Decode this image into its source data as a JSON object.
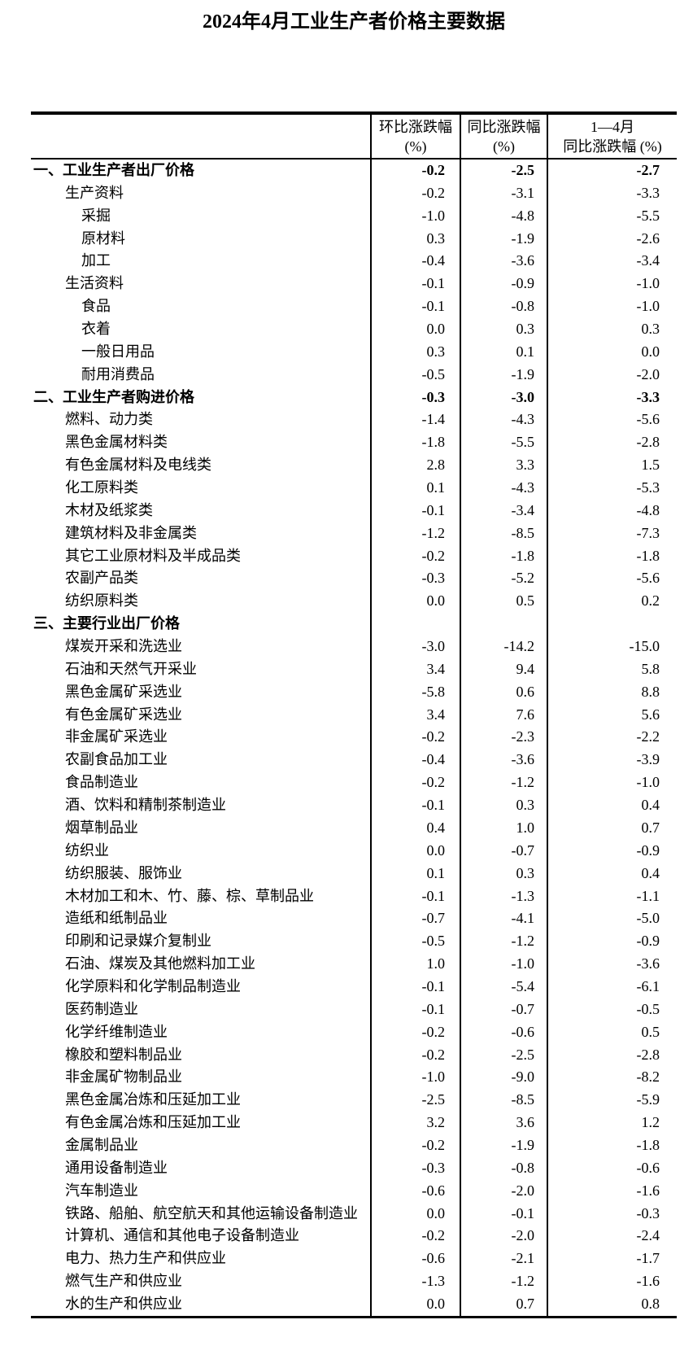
{
  "page": {
    "title": "2024年4月工业生产者价格主要数据"
  },
  "table": {
    "header": {
      "mom": {
        "line1": "环比涨跌幅",
        "line2": "(%)"
      },
      "yoy": {
        "line1": "同比涨跌幅",
        "line2": "(%)"
      },
      "ytd": {
        "line1": "1—4月",
        "line2": "同比涨跌幅 (%)"
      }
    },
    "rows": [
      {
        "label": "一、工业生产者出厂价格",
        "indent": 0,
        "bold": true,
        "mom": "-0.2",
        "yoy": "-2.5",
        "ytd": "-2.7"
      },
      {
        "label": "生产资料",
        "indent": 1,
        "bold": false,
        "mom": "-0.2",
        "yoy": "-3.1",
        "ytd": "-3.3"
      },
      {
        "label": "采掘",
        "indent": 2,
        "bold": false,
        "mom": "-1.0",
        "yoy": "-4.8",
        "ytd": "-5.5"
      },
      {
        "label": "原材料",
        "indent": 2,
        "bold": false,
        "mom": "0.3",
        "yoy": "-1.9",
        "ytd": "-2.6"
      },
      {
        "label": "加工",
        "indent": 2,
        "bold": false,
        "mom": "-0.4",
        "yoy": "-3.6",
        "ytd": "-3.4"
      },
      {
        "label": "生活资料",
        "indent": 1,
        "bold": false,
        "mom": "-0.1",
        "yoy": "-0.9",
        "ytd": "-1.0"
      },
      {
        "label": "食品",
        "indent": 2,
        "bold": false,
        "mom": "-0.1",
        "yoy": "-0.8",
        "ytd": "-1.0"
      },
      {
        "label": "衣着",
        "indent": 2,
        "bold": false,
        "mom": "0.0",
        "yoy": "0.3",
        "ytd": "0.3"
      },
      {
        "label": "一般日用品",
        "indent": 2,
        "bold": false,
        "mom": "0.3",
        "yoy": "0.1",
        "ytd": "0.0"
      },
      {
        "label": "耐用消费品",
        "indent": 2,
        "bold": false,
        "mom": "-0.5",
        "yoy": "-1.9",
        "ytd": "-2.0"
      },
      {
        "label": "二、工业生产者购进价格",
        "indent": 0,
        "bold": true,
        "mom": "-0.3",
        "yoy": "-3.0",
        "ytd": "-3.3"
      },
      {
        "label": "燃料、动力类",
        "indent": 1,
        "bold": false,
        "mom": "-1.4",
        "yoy": "-4.3",
        "ytd": "-5.6"
      },
      {
        "label": "黑色金属材料类",
        "indent": 1,
        "bold": false,
        "mom": "-1.8",
        "yoy": "-5.5",
        "ytd": "-2.8"
      },
      {
        "label": "有色金属材料及电线类",
        "indent": 1,
        "bold": false,
        "mom": "2.8",
        "yoy": "3.3",
        "ytd": "1.5"
      },
      {
        "label": "化工原料类",
        "indent": 1,
        "bold": false,
        "mom": "0.1",
        "yoy": "-4.3",
        "ytd": "-5.3"
      },
      {
        "label": "木材及纸浆类",
        "indent": 1,
        "bold": false,
        "mom": "-0.1",
        "yoy": "-3.4",
        "ytd": "-4.8"
      },
      {
        "label": "建筑材料及非金属类",
        "indent": 1,
        "bold": false,
        "mom": "-1.2",
        "yoy": "-8.5",
        "ytd": "-7.3"
      },
      {
        "label": "其它工业原材料及半成品类",
        "indent": 1,
        "bold": false,
        "mom": "-0.2",
        "yoy": "-1.8",
        "ytd": "-1.8"
      },
      {
        "label": "农副产品类",
        "indent": 1,
        "bold": false,
        "mom": "-0.3",
        "yoy": "-5.2",
        "ytd": "-5.6"
      },
      {
        "label": "纺织原料类",
        "indent": 1,
        "bold": false,
        "mom": "0.0",
        "yoy": "0.5",
        "ytd": "0.2"
      },
      {
        "label": "三、主要行业出厂价格",
        "indent": 0,
        "bold": true,
        "mom": "",
        "yoy": "",
        "ytd": ""
      },
      {
        "label": "煤炭开采和洗选业",
        "indent": 1,
        "bold": false,
        "mom": "-3.0",
        "yoy": "-14.2",
        "ytd": "-15.0"
      },
      {
        "label": "石油和天然气开采业",
        "indent": 1,
        "bold": false,
        "mom": "3.4",
        "yoy": "9.4",
        "ytd": "5.8"
      },
      {
        "label": "黑色金属矿采选业",
        "indent": 1,
        "bold": false,
        "mom": "-5.8",
        "yoy": "0.6",
        "ytd": "8.8"
      },
      {
        "label": "有色金属矿采选业",
        "indent": 1,
        "bold": false,
        "mom": "3.4",
        "yoy": "7.6",
        "ytd": "5.6"
      },
      {
        "label": "非金属矿采选业",
        "indent": 1,
        "bold": false,
        "mom": "-0.2",
        "yoy": "-2.3",
        "ytd": "-2.2"
      },
      {
        "label": "农副食品加工业",
        "indent": 1,
        "bold": false,
        "mom": "-0.4",
        "yoy": "-3.6",
        "ytd": "-3.9"
      },
      {
        "label": "食品制造业",
        "indent": 1,
        "bold": false,
        "mom": "-0.2",
        "yoy": "-1.2",
        "ytd": "-1.0"
      },
      {
        "label": "酒、饮料和精制茶制造业",
        "indent": 1,
        "bold": false,
        "mom": "-0.1",
        "yoy": "0.3",
        "ytd": "0.4"
      },
      {
        "label": "烟草制品业",
        "indent": 1,
        "bold": false,
        "mom": "0.4",
        "yoy": "1.0",
        "ytd": "0.7"
      },
      {
        "label": "纺织业",
        "indent": 1,
        "bold": false,
        "mom": "0.0",
        "yoy": "-0.7",
        "ytd": "-0.9"
      },
      {
        "label": "纺织服装、服饰业",
        "indent": 1,
        "bold": false,
        "mom": "0.1",
        "yoy": "0.3",
        "ytd": "0.4"
      },
      {
        "label": "木材加工和木、竹、藤、棕、草制品业",
        "indent": 1,
        "bold": false,
        "mom": "-0.1",
        "yoy": "-1.3",
        "ytd": "-1.1"
      },
      {
        "label": "造纸和纸制品业",
        "indent": 1,
        "bold": false,
        "mom": "-0.7",
        "yoy": "-4.1",
        "ytd": "-5.0"
      },
      {
        "label": "印刷和记录媒介复制业",
        "indent": 1,
        "bold": false,
        "mom": "-0.5",
        "yoy": "-1.2",
        "ytd": "-0.9"
      },
      {
        "label": "石油、煤炭及其他燃料加工业",
        "indent": 1,
        "bold": false,
        "mom": "1.0",
        "yoy": "-1.0",
        "ytd": "-3.6"
      },
      {
        "label": "化学原料和化学制品制造业",
        "indent": 1,
        "bold": false,
        "mom": "-0.1",
        "yoy": "-5.4",
        "ytd": "-6.1"
      },
      {
        "label": "医药制造业",
        "indent": 1,
        "bold": false,
        "mom": "-0.1",
        "yoy": "-0.7",
        "ytd": "-0.5"
      },
      {
        "label": "化学纤维制造业",
        "indent": 1,
        "bold": false,
        "mom": "-0.2",
        "yoy": "-0.6",
        "ytd": "0.5"
      },
      {
        "label": "橡胶和塑料制品业",
        "indent": 1,
        "bold": false,
        "mom": "-0.2",
        "yoy": "-2.5",
        "ytd": "-2.8"
      },
      {
        "label": "非金属矿物制品业",
        "indent": 1,
        "bold": false,
        "mom": "-1.0",
        "yoy": "-9.0",
        "ytd": "-8.2"
      },
      {
        "label": "黑色金属冶炼和压延加工业",
        "indent": 1,
        "bold": false,
        "mom": "-2.5",
        "yoy": "-8.5",
        "ytd": "-5.9"
      },
      {
        "label": "有色金属冶炼和压延加工业",
        "indent": 1,
        "bold": false,
        "mom": "3.2",
        "yoy": "3.6",
        "ytd": "1.2"
      },
      {
        "label": "金属制品业",
        "indent": 1,
        "bold": false,
        "mom": "-0.2",
        "yoy": "-1.9",
        "ytd": "-1.8"
      },
      {
        "label": "通用设备制造业",
        "indent": 1,
        "bold": false,
        "mom": "-0.3",
        "yoy": "-0.8",
        "ytd": "-0.6"
      },
      {
        "label": "汽车制造业",
        "indent": 1,
        "bold": false,
        "mom": "-0.6",
        "yoy": "-2.0",
        "ytd": "-1.6"
      },
      {
        "label": "铁路、船舶、航空航天和其他运输设备制造业",
        "indent": 1,
        "bold": false,
        "mom": "0.0",
        "yoy": "-0.1",
        "ytd": "-0.3"
      },
      {
        "label": "计算机、通信和其他电子设备制造业",
        "indent": 1,
        "bold": false,
        "mom": "-0.2",
        "yoy": "-2.0",
        "ytd": "-2.4"
      },
      {
        "label": "电力、热力生产和供应业",
        "indent": 1,
        "bold": false,
        "mom": "-0.6",
        "yoy": "-2.1",
        "ytd": "-1.7"
      },
      {
        "label": "燃气生产和供应业",
        "indent": 1,
        "bold": false,
        "mom": "-1.3",
        "yoy": "-1.2",
        "ytd": "-1.6"
      },
      {
        "label": "水的生产和供应业",
        "indent": 1,
        "bold": false,
        "mom": "0.0",
        "yoy": "0.7",
        "ytd": "0.8"
      }
    ]
  }
}
